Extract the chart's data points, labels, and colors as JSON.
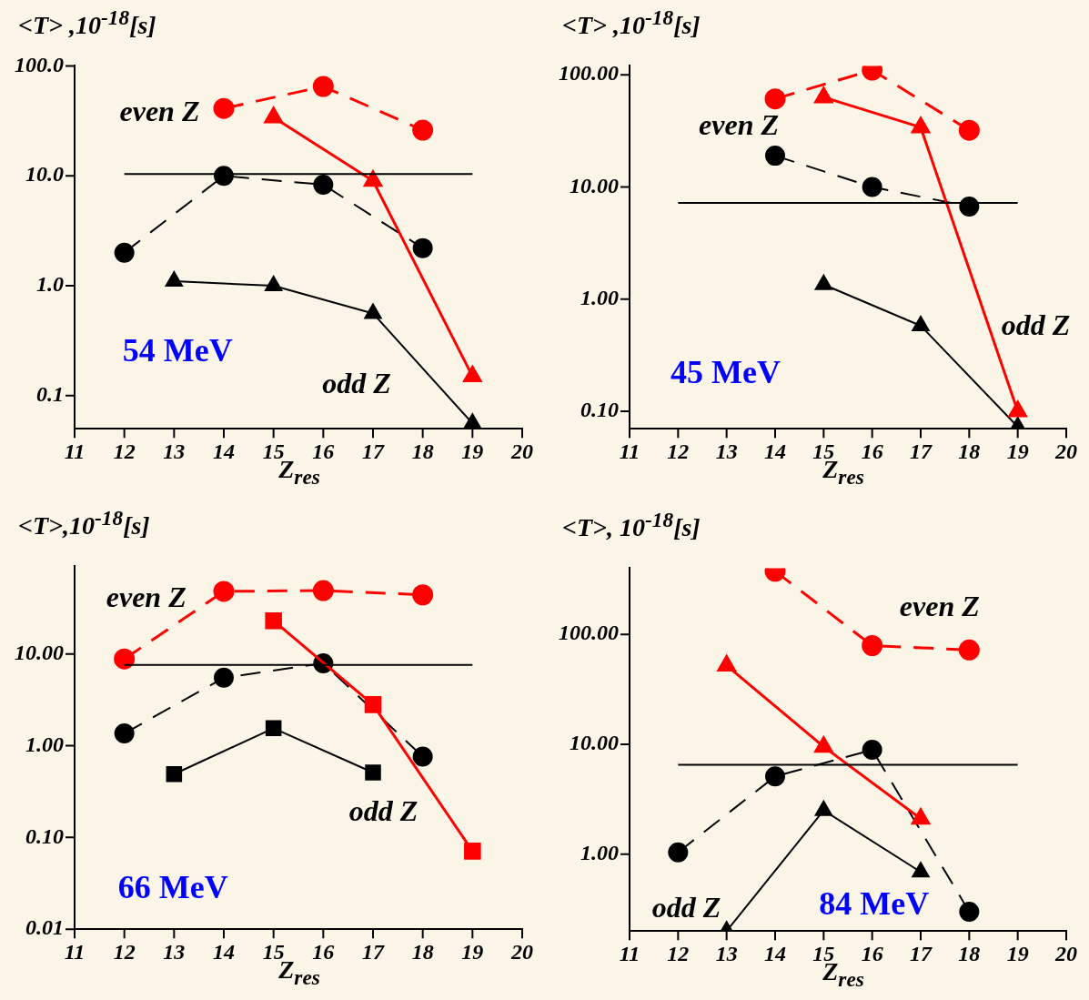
{
  "chart_data": [
    {
      "type": "line",
      "title": "54 MeV",
      "ylabel": "<T> ,10$^{-18}$[s]",
      "xlabel": "Z$_{res}$",
      "log": true,
      "xlim": [
        11,
        20
      ],
      "xticks": [
        11,
        12,
        13,
        14,
        15,
        16,
        17,
        18,
        19,
        20
      ],
      "ylim": [
        0.05,
        100
      ],
      "yticks": [
        0.1,
        {
          "value": 1,
          "label": "1.0"
        },
        {
          "value": 10,
          "label": "10.0"
        },
        {
          "value": 100,
          "label": "100.0"
        }
      ],
      "annotations": [
        "even Z",
        "odd Z"
      ],
      "series": [
        {
          "color": "#ff0000",
          "x": [
            14,
            16,
            18
          ],
          "values": [
            41,
            65,
            26
          ],
          "marker": "circle",
          "line_style": "dashed"
        },
        {
          "color": "#ff0000",
          "x": [
            15,
            17,
            19
          ],
          "values": [
            34,
            9,
            0.15
          ],
          "marker": "triangle",
          "line_style": "solid"
        },
        {
          "color": "#000000",
          "x": [
            12,
            14,
            16,
            18
          ],
          "values": [
            2.0,
            10,
            8.3,
            2.2
          ],
          "marker": "circle",
          "line_style": "dashed"
        },
        {
          "color": "#000000",
          "x": [
            13,
            15,
            17,
            19
          ],
          "values": [
            1.1,
            1.0,
            0.56,
            0.056
          ],
          "marker": "triangle",
          "line_style": "solid"
        },
        {
          "color": "#000000",
          "x": [
            12,
            19
          ],
          "values": [
            10.4,
            10.4
          ],
          "marker": "none",
          "line_style": "solid"
        }
      ]
    },
    {
      "type": "line",
      "title": "45 MeV",
      "ylabel": "<T> ,10$^{-18}$[s]",
      "xlabel": "Z$_{res}$",
      "log": true,
      "xlim": [
        11,
        20
      ],
      "xticks": [
        11,
        12,
        13,
        14,
        15,
        16,
        17,
        18,
        19,
        20
      ],
      "ylim": [
        0.07,
        120
      ],
      "yticks": [
        {
          "value": 0.1,
          "label": "0.10"
        },
        {
          "value": 1,
          "label": "1.00"
        },
        {
          "value": 10,
          "label": "10.00"
        },
        {
          "value": 100,
          "label": "100.00"
        }
      ],
      "annotations": [
        "even Z",
        "odd Z"
      ],
      "series": [
        {
          "color": "#ff0000",
          "x": [
            14,
            16,
            18
          ],
          "values": [
            61,
            110,
            32
          ],
          "marker": "circle",
          "line_style": "dashed"
        },
        {
          "color": "#ff0000",
          "x": [
            15,
            17,
            19
          ],
          "values": [
            63,
            34,
            0.1
          ],
          "marker": "triangle",
          "line_style": "solid"
        },
        {
          "color": "#000000",
          "x": [
            14,
            16,
            18
          ],
          "values": [
            19,
            10,
            6.7
          ],
          "marker": "circle",
          "line_style": "dashed"
        },
        {
          "color": "#000000",
          "x": [
            15,
            17,
            19
          ],
          "values": [
            1.35,
            0.58,
            0.073
          ],
          "marker": "triangle",
          "line_style": "solid"
        },
        {
          "color": "#000000",
          "x": [
            12,
            19
          ],
          "values": [
            7.2,
            7.2
          ],
          "marker": "none",
          "line_style": "solid"
        }
      ]
    },
    {
      "type": "line",
      "title": "66 MeV",
      "ylabel": "<T>,10$^{-18}$[s]",
      "xlabel": "Z$_{res}$",
      "log": true,
      "xlim": [
        11,
        20
      ],
      "xticks": [
        11,
        12,
        13,
        14,
        15,
        16,
        17,
        18,
        19,
        20
      ],
      "ylim": [
        0.01,
        90
      ],
      "yticks": [
        {
          "value": 0.01,
          "label": "0.01"
        },
        {
          "value": 0.1,
          "label": "0.10"
        },
        {
          "value": 1,
          "label": "1.00"
        },
        {
          "value": 10,
          "label": "10.00"
        }
      ],
      "annotations": [
        "even Z",
        "odd Z"
      ],
      "series": [
        {
          "color": "#ff0000",
          "x": [
            12,
            14,
            16,
            18
          ],
          "values": [
            8.8,
            48,
            49,
            44
          ],
          "marker": "circle",
          "line_style": "dashed"
        },
        {
          "color": "#ff0000",
          "x": [
            15,
            17,
            19
          ],
          "values": [
            23,
            2.8,
            0.071
          ],
          "marker": "square",
          "line_style": "solid"
        },
        {
          "color": "#000000",
          "x": [
            12,
            14,
            16,
            18
          ],
          "values": [
            1.36,
            5.5,
            7.9,
            0.76
          ],
          "marker": "circle",
          "line_style": "dashed"
        },
        {
          "color": "#000000",
          "x": [
            13,
            15,
            17
          ],
          "values": [
            0.49,
            1.55,
            0.51
          ],
          "marker": "square",
          "line_style": "solid"
        },
        {
          "color": "#000000",
          "x": [
            12,
            19
          ],
          "values": [
            7.6,
            7.6
          ],
          "marker": "none",
          "line_style": "solid"
        }
      ]
    },
    {
      "type": "line",
      "title": "84 MeV",
      "ylabel": "<T>, 10$^{-18}$[s]",
      "xlabel": "Z$_{res}$",
      "log": true,
      "xlim": [
        11,
        20
      ],
      "xticks": [
        11,
        12,
        13,
        14,
        15,
        16,
        17,
        18,
        19,
        20
      ],
      "ylim": [
        0.2,
        400
      ],
      "yticks": [
        {
          "value": 1,
          "label": "1.00"
        },
        {
          "value": 10,
          "label": "10.00"
        },
        {
          "value": 100,
          "label": "100.00"
        }
      ],
      "annotations": [
        "even Z",
        "odd Z"
      ],
      "series": [
        {
          "color": "#ff0000",
          "x": [
            14,
            16,
            18
          ],
          "values": [
            375,
            79,
            72
          ],
          "marker": "circle",
          "line_style": "dashed"
        },
        {
          "color": "#ff0000",
          "x": [
            13,
            15,
            17
          ],
          "values": [
            52,
            9.5,
            2.1
          ],
          "marker": "triangle",
          "line_style": "solid"
        },
        {
          "color": "#000000",
          "x": [
            12,
            14,
            16,
            18
          ],
          "values": [
            1.04,
            5.1,
            8.9,
            0.3
          ],
          "marker": "circle",
          "line_style": "dashed"
        },
        {
          "color": "#000000",
          "x": [
            13,
            15,
            17
          ],
          "values": [
            0.2,
            2.5,
            0.69
          ],
          "marker": "triangle",
          "line_style": "solid"
        },
        {
          "color": "#000000",
          "x": [
            12,
            19
          ],
          "values": [
            6.5,
            6.5
          ],
          "marker": "none",
          "line_style": "solid"
        }
      ]
    }
  ]
}
